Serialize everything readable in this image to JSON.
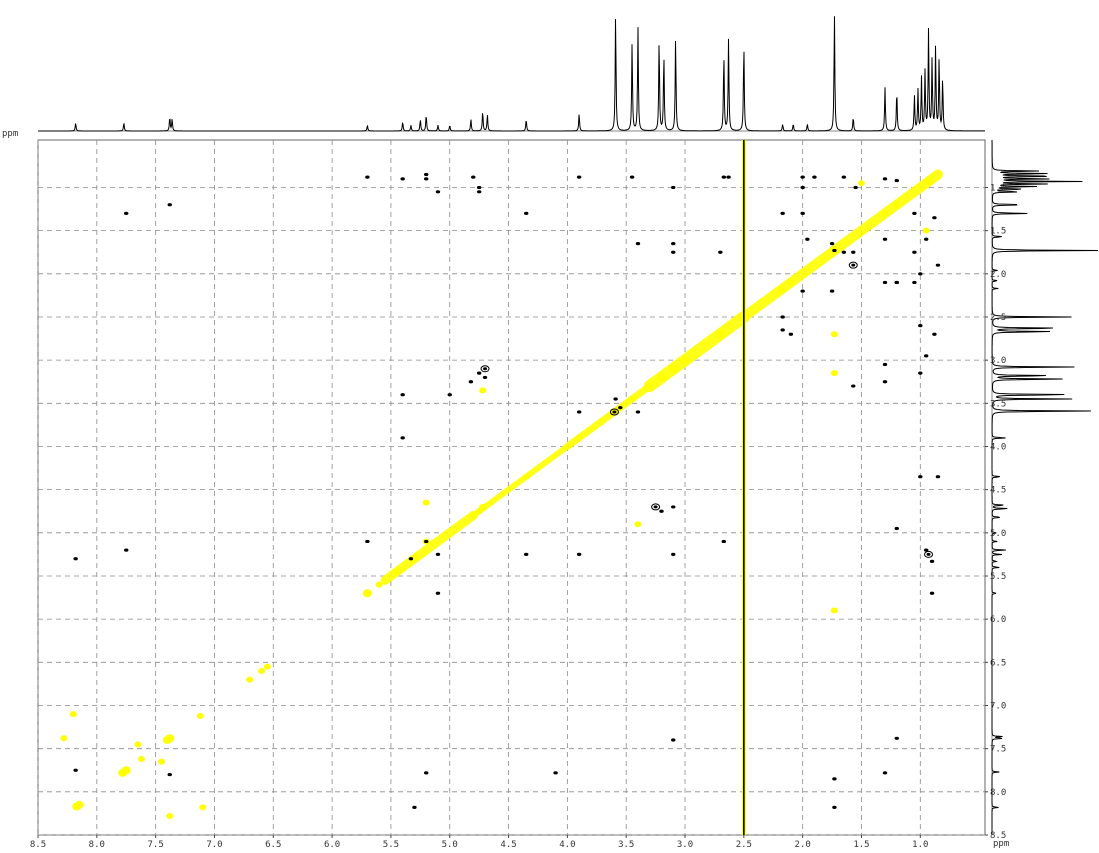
{
  "figure": {
    "kind": "2D NMR contour plot with 1D projections"
  },
  "chart_data": {
    "type": "contour",
    "unit": "ppm",
    "f2_axis": {
      "range": [
        8.5,
        0.45
      ],
      "reversed": true,
      "ticks": [
        "8.5",
        "8.0",
        "7.5",
        "7.0",
        "6.5",
        "6.0",
        "5.5",
        "5.0",
        "4.5",
        "4.0",
        "3.5",
        "3.0",
        "2.5",
        "2.0",
        "1.5",
        "1.0",
        "ppm"
      ]
    },
    "f1_axis": {
      "range": [
        0.45,
        8.5
      ],
      "ticks": [
        "ppm",
        "1.0",
        "1.5",
        "2.0",
        "2.5",
        "3.0",
        "3.5",
        "4.0",
        "4.5",
        "5.0",
        "5.5",
        "6.0",
        "6.5",
        "7.0",
        "7.5",
        "8.0",
        "8.5"
      ]
    },
    "grid": true,
    "colors": {
      "positive": "#ffff00",
      "negative": "#000000",
      "spectrum": "#000000",
      "grid": "#8a8a8a",
      "frame": "#666666"
    },
    "solvent_line_ppm": 2.5,
    "projection_peaks": [
      {
        "ppm": 8.18,
        "h": 0.07
      },
      {
        "ppm": 7.77,
        "h": 0.07
      },
      {
        "ppm": 7.38,
        "h": 0.12
      },
      {
        "ppm": 7.36,
        "h": 0.1
      },
      {
        "ppm": 5.7,
        "h": 0.05
      },
      {
        "ppm": 5.4,
        "h": 0.08
      },
      {
        "ppm": 5.33,
        "h": 0.05
      },
      {
        "ppm": 5.25,
        "h": 0.1
      },
      {
        "ppm": 5.2,
        "h": 0.14
      },
      {
        "ppm": 5.1,
        "h": 0.05
      },
      {
        "ppm": 5.0,
        "h": 0.05
      },
      {
        "ppm": 4.82,
        "h": 0.1
      },
      {
        "ppm": 4.72,
        "h": 0.17
      },
      {
        "ppm": 4.68,
        "h": 0.14
      },
      {
        "ppm": 4.35,
        "h": 0.1
      },
      {
        "ppm": 3.9,
        "h": 0.15
      },
      {
        "ppm": 3.59,
        "h": 1.0
      },
      {
        "ppm": 3.45,
        "h": 0.75
      },
      {
        "ppm": 3.4,
        "h": 0.88
      },
      {
        "ppm": 3.22,
        "h": 0.78
      },
      {
        "ppm": 3.18,
        "h": 0.66
      },
      {
        "ppm": 3.08,
        "h": 0.8
      },
      {
        "ppm": 2.67,
        "h": 0.66
      },
      {
        "ppm": 2.63,
        "h": 0.78
      },
      {
        "ppm": 2.5,
        "h": 0.75
      },
      {
        "ppm": 2.17,
        "h": 0.06
      },
      {
        "ppm": 2.08,
        "h": 0.06
      },
      {
        "ppm": 1.96,
        "h": 0.06
      },
      {
        "ppm": 1.73,
        "h": 1.0
      },
      {
        "ppm": 1.57,
        "h": 0.12
      },
      {
        "ppm": 1.3,
        "h": 0.37
      },
      {
        "ppm": 1.2,
        "h": 0.35
      },
      {
        "ppm": 1.05,
        "h": 0.3
      },
      {
        "ppm": 1.02,
        "h": 0.35
      },
      {
        "ppm": 0.99,
        "h": 0.45
      },
      {
        "ppm": 0.96,
        "h": 0.5
      },
      {
        "ppm": 0.93,
        "h": 0.85
      },
      {
        "ppm": 0.9,
        "h": 0.6
      },
      {
        "ppm": 0.87,
        "h": 0.72
      },
      {
        "ppm": 0.84,
        "h": 0.62
      },
      {
        "ppm": 0.81,
        "h": 0.45
      }
    ],
    "diagonal_segments": [
      {
        "from": 0.85,
        "to": 2.5,
        "w": 10
      },
      {
        "from": 2.5,
        "to": 3.3,
        "w": 12
      },
      {
        "from": 3.3,
        "to": 4.0,
        "w": 7
      },
      {
        "from": 4.0,
        "to": 4.8,
        "w": 6
      },
      {
        "from": 4.8,
        "to": 5.55,
        "w": 9
      }
    ],
    "positive_peaks": [
      [
        8.17,
        8.17,
        2
      ],
      [
        8.15,
        8.15,
        2
      ],
      [
        7.78,
        7.78,
        2
      ],
      [
        7.75,
        7.75,
        2
      ],
      [
        7.38,
        7.38,
        2
      ],
      [
        7.4,
        7.4,
        2
      ],
      [
        7.62,
        7.62,
        1
      ],
      [
        7.12,
        7.12,
        1
      ],
      [
        6.6,
        6.6,
        1
      ],
      [
        6.7,
        6.7,
        1
      ],
      [
        6.55,
        6.55,
        1
      ],
      [
        8.2,
        7.1,
        1
      ],
      [
        7.1,
        8.18,
        1
      ],
      [
        7.38,
        8.28,
        1
      ],
      [
        8.28,
        7.38,
        1
      ],
      [
        7.65,
        7.45,
        1
      ],
      [
        7.45,
        7.65,
        1
      ],
      [
        5.7,
        5.7,
        2
      ],
      [
        5.6,
        5.6,
        1
      ],
      [
        5.45,
        5.45,
        2
      ],
      [
        5.3,
        5.3,
        2
      ],
      [
        5.2,
        5.1,
        1
      ],
      [
        4.75,
        4.75,
        1
      ],
      [
        4.72,
        4.7,
        1
      ],
      [
        4.35,
        4.35,
        1
      ],
      [
        3.9,
        3.9,
        1
      ],
      [
        3.6,
        3.6,
        2
      ],
      [
        3.45,
        3.45,
        1
      ],
      [
        3.2,
        3.2,
        2
      ],
      [
        3.1,
        3.1,
        2
      ],
      [
        3.0,
        3.0,
        2
      ],
      [
        2.7,
        2.7,
        2
      ],
      [
        2.18,
        2.18,
        1
      ],
      [
        2.1,
        2.1,
        1
      ],
      [
        1.73,
        1.73,
        2
      ],
      [
        1.3,
        1.3,
        1
      ],
      [
        1.2,
        1.2,
        1
      ],
      [
        0.93,
        0.93,
        2
      ],
      [
        1.73,
        5.9,
        1
      ],
      [
        1.73,
        2.7,
        1
      ],
      [
        1.73,
        3.15,
        1
      ],
      [
        0.95,
        1.5,
        1
      ],
      [
        1.5,
        0.95,
        1
      ],
      [
        4.72,
        3.35,
        1
      ],
      [
        5.2,
        4.65,
        1
      ],
      [
        3.4,
        4.9,
        1
      ]
    ],
    "negative_peaks": [
      [
        5.7,
        0.88,
        1
      ],
      [
        5.4,
        0.9,
        1
      ],
      [
        5.2,
        0.85,
        1
      ],
      [
        5.2,
        0.9,
        1
      ],
      [
        5.1,
        1.05,
        1
      ],
      [
        4.8,
        0.88,
        1
      ],
      [
        4.75,
        1.0,
        1
      ],
      [
        3.9,
        0.88,
        1
      ],
      [
        3.45,
        0.88,
        1
      ],
      [
        3.1,
        1.0,
        1
      ],
      [
        2.67,
        0.88,
        1
      ],
      [
        2.63,
        0.88,
        1
      ],
      [
        2.0,
        0.88,
        1
      ],
      [
        2.0,
        1.0,
        1
      ],
      [
        1.9,
        0.88,
        1
      ],
      [
        1.65,
        0.88,
        1
      ],
      [
        1.55,
        1.0,
        1
      ],
      [
        1.3,
        0.9,
        1
      ],
      [
        1.2,
        0.92,
        1
      ],
      [
        1.3,
        1.6,
        1
      ],
      [
        1.2,
        2.1,
        1
      ],
      [
        1.05,
        2.1,
        1
      ],
      [
        7.75,
        1.3,
        1
      ],
      [
        7.38,
        1.2,
        1
      ],
      [
        8.18,
        5.3,
        1
      ],
      [
        7.75,
        5.2,
        1
      ],
      [
        7.38,
        7.8,
        1
      ],
      [
        8.18,
        7.75,
        1
      ],
      [
        3.9,
        3.6,
        1
      ],
      [
        3.6,
        3.6,
        2
      ],
      [
        3.59,
        3.45,
        1
      ],
      [
        3.4,
        3.6,
        1
      ],
      [
        3.25,
        4.7,
        2
      ],
      [
        3.2,
        4.75,
        1
      ],
      [
        3.1,
        4.7,
        1
      ],
      [
        4.7,
        3.1,
        2
      ],
      [
        4.7,
        3.2,
        1
      ],
      [
        4.75,
        3.15,
        1
      ],
      [
        4.82,
        3.25,
        1
      ],
      [
        4.35,
        1.3,
        1
      ],
      [
        5.4,
        3.4,
        1
      ],
      [
        5.4,
        3.9,
        1
      ],
      [
        5.33,
        5.3,
        1
      ],
      [
        5.1,
        5.25,
        1
      ],
      [
        5.1,
        5.7,
        1
      ],
      [
        5.7,
        5.1,
        1
      ],
      [
        5.2,
        5.1,
        1
      ],
      [
        5.0,
        3.4,
        1
      ],
      [
        4.35,
        5.25,
        1
      ],
      [
        3.9,
        5.25,
        1
      ],
      [
        3.1,
        5.25,
        1
      ],
      [
        2.67,
        5.1,
        1
      ],
      [
        2.17,
        1.3,
        1
      ],
      [
        2.17,
        2.65,
        1
      ],
      [
        2.1,
        2.7,
        1
      ],
      [
        2.0,
        1.3,
        1
      ],
      [
        1.96,
        1.6,
        1
      ],
      [
        1.57,
        1.9,
        2
      ],
      [
        1.57,
        1.75,
        1
      ],
      [
        1.3,
        2.1,
        1
      ],
      [
        1.2,
        2.1,
        1
      ],
      [
        1.05,
        1.3,
        1
      ],
      [
        1.05,
        1.75,
        1
      ],
      [
        1.0,
        2.0,
        1
      ],
      [
        0.95,
        1.6,
        1
      ],
      [
        0.88,
        1.35,
        1
      ],
      [
        0.85,
        1.9,
        1
      ],
      [
        1.73,
        1.73,
        1
      ],
      [
        1.75,
        1.65,
        1
      ],
      [
        1.65,
        1.75,
        1
      ],
      [
        1.0,
        4.35,
        1
      ],
      [
        0.85,
        4.35,
        1
      ],
      [
        0.93,
        5.25,
        2
      ],
      [
        0.9,
        5.33,
        1
      ],
      [
        0.95,
        5.2,
        1
      ],
      [
        0.9,
        5.7,
        1
      ],
      [
        1.2,
        4.95,
        1
      ],
      [
        1.3,
        7.78,
        1
      ],
      [
        1.2,
        7.38,
        1
      ],
      [
        1.73,
        7.85,
        1
      ],
      [
        1.73,
        8.18,
        1
      ],
      [
        3.1,
        7.4,
        1
      ],
      [
        4.1,
        7.78,
        1
      ],
      [
        5.2,
        7.78,
        1
      ],
      [
        5.3,
        8.18,
        1
      ],
      [
        4.75,
        1.05,
        1
      ],
      [
        3.55,
        3.55,
        1
      ],
      [
        3.4,
        1.65,
        1
      ],
      [
        3.1,
        1.65,
        1
      ],
      [
        3.1,
        1.75,
        1
      ],
      [
        2.7,
        1.75,
        1
      ],
      [
        2.17,
        2.5,
        1
      ],
      [
        2.0,
        2.2,
        1
      ],
      [
        1.75,
        2.2,
        1
      ],
      [
        1.57,
        3.3,
        1
      ],
      [
        1.3,
        3.25,
        1
      ],
      [
        1.0,
        3.15,
        1
      ],
      [
        0.95,
        2.95,
        1
      ],
      [
        1.3,
        3.05,
        1
      ],
      [
        1.0,
        2.6,
        1
      ],
      [
        0.88,
        2.7,
        1
      ]
    ]
  }
}
